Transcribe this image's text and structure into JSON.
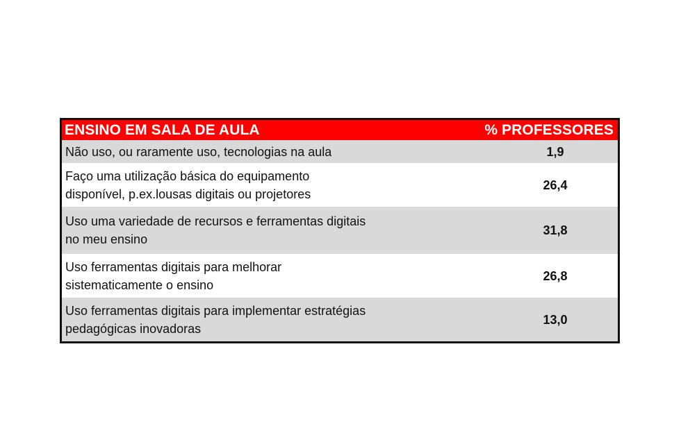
{
  "table": {
    "header": {
      "label": "ENSINO EM SALA DE AULA",
      "value": "% PROFESSORES"
    },
    "rows": [
      {
        "label": "Não uso, ou raramente uso, tecnologias na aula",
        "value": "1,9"
      },
      {
        "label": "Faço uma utilização básica do equipamento\ndisponível, p.ex.lousas digitais ou projetores",
        "value": "26,4"
      },
      {
        "label": "Uso uma variedade de recursos e ferramentas digitais\nno meu ensino",
        "value": "31,8"
      },
      {
        "label": "Uso ferramentas digitais para melhorar\nsistematicamente o ensino",
        "value": "26,8"
      },
      {
        "label": "Uso ferramentas digitais para implementar estratégias\npedagógicas inovadoras",
        "value": "13,0"
      }
    ],
    "colors": {
      "header_background": "#ff0000",
      "header_text": "#ffffff",
      "shaded_row": "#d9d9d9",
      "border": "#111111"
    }
  }
}
